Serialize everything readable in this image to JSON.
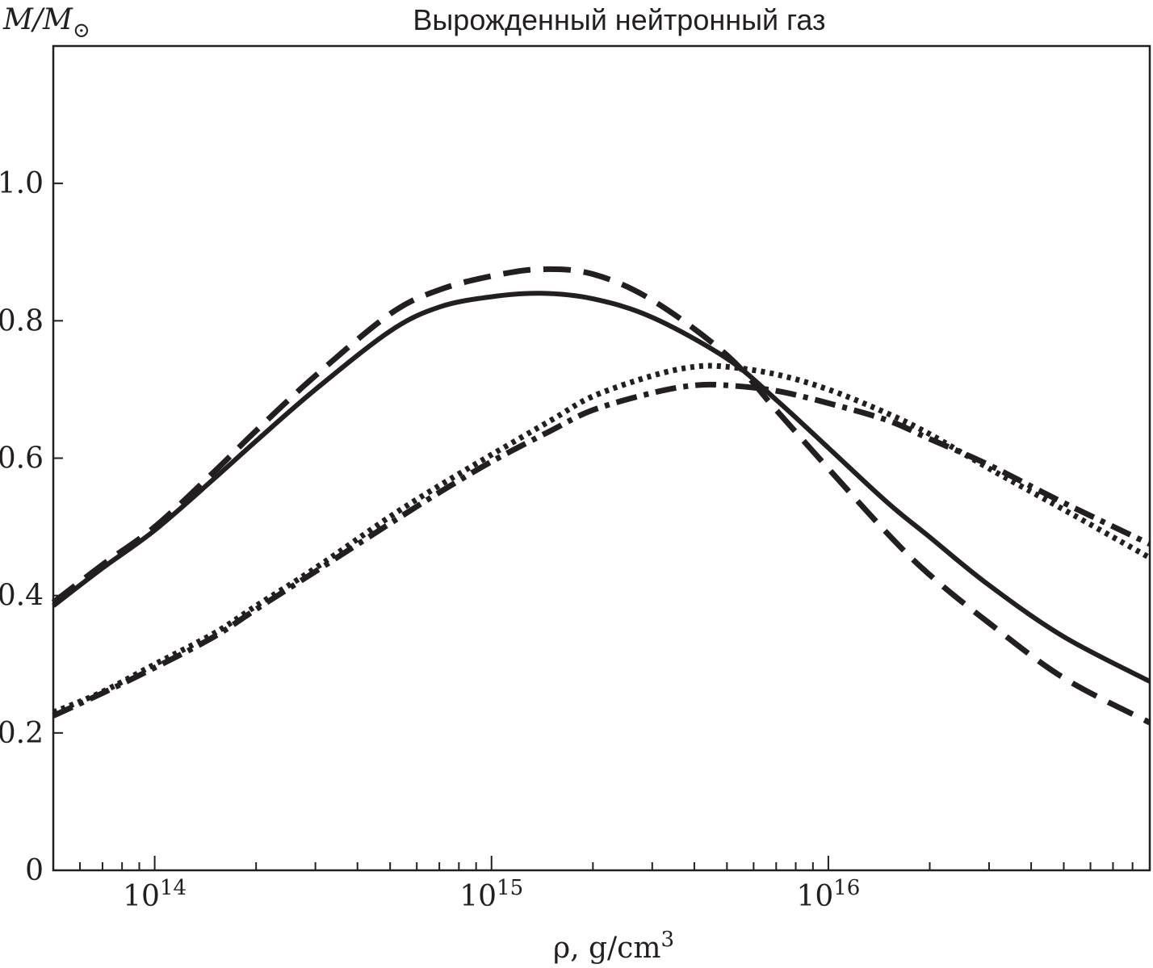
{
  "chart_data": {
    "type": "line",
    "title": "Вырожденный нейтронный газ",
    "ylabel": "M/M",
    "ylabel_sub": "⊙",
    "xlabel": "ρ, g/cm",
    "xlabel_sup": "3",
    "xscale": "log",
    "xlim": [
      50000000000000.0,
      9e+16
    ],
    "ylim": [
      0,
      1.2
    ],
    "y_ticks": [
      {
        "value": 0,
        "label": "0"
      },
      {
        "value": 0.2,
        "label": "0.2"
      },
      {
        "value": 0.4,
        "label": "0.4"
      },
      {
        "value": 0.6,
        "label": "0.6"
      },
      {
        "value": 0.8,
        "label": "0.8"
      },
      {
        "value": 1.0,
        "label": "1.0"
      }
    ],
    "x_major_ticks": [
      {
        "value": 100000000000000.0,
        "base": "10",
        "exp": "14"
      },
      {
        "value": 1000000000000000.0,
        "base": "10",
        "exp": "15"
      },
      {
        "value": 1e+16,
        "base": "10",
        "exp": "16"
      }
    ],
    "series": [
      {
        "name": "solid",
        "style": "solid",
        "points": [
          [
            50000000000000.0,
            0.385
          ],
          [
            70000000000000.0,
            0.44
          ],
          [
            100000000000000.0,
            0.495
          ],
          [
            150000000000000.0,
            0.57
          ],
          [
            200000000000000.0,
            0.625
          ],
          [
            300000000000000.0,
            0.7
          ],
          [
            500000000000000.0,
            0.785
          ],
          [
            700000000000000.0,
            0.82
          ],
          [
            1000000000000000.0,
            0.835
          ],
          [
            1400000000000000.0,
            0.84
          ],
          [
            2000000000000000.0,
            0.832
          ],
          [
            3000000000000000.0,
            0.805
          ],
          [
            5000000000000000.0,
            0.745
          ],
          [
            7000000000000000.0,
            0.685
          ],
          [
            1e+16,
            0.615
          ],
          [
            1.5e+16,
            0.535
          ],
          [
            2e+16,
            0.485
          ],
          [
            3e+16,
            0.415
          ],
          [
            5e+16,
            0.34
          ],
          [
            9e+16,
            0.275
          ]
        ]
      },
      {
        "name": "dashed",
        "style": "dashed",
        "points": [
          [
            50000000000000.0,
            0.39
          ],
          [
            70000000000000.0,
            0.445
          ],
          [
            100000000000000.0,
            0.5
          ],
          [
            150000000000000.0,
            0.58
          ],
          [
            200000000000000.0,
            0.64
          ],
          [
            300000000000000.0,
            0.72
          ],
          [
            500000000000000.0,
            0.81
          ],
          [
            700000000000000.0,
            0.845
          ],
          [
            1000000000000000.0,
            0.865
          ],
          [
            1400000000000000.0,
            0.875
          ],
          [
            2000000000000000.0,
            0.868
          ],
          [
            3000000000000000.0,
            0.83
          ],
          [
            5000000000000000.0,
            0.75
          ],
          [
            7000000000000000.0,
            0.67
          ],
          [
            1e+16,
            0.585
          ],
          [
            1.5e+16,
            0.49
          ],
          [
            2e+16,
            0.43
          ],
          [
            3e+16,
            0.36
          ],
          [
            5e+16,
            0.28
          ],
          [
            9e+16,
            0.215
          ]
        ]
      },
      {
        "name": "dotted",
        "style": "dotted",
        "points": [
          [
            50000000000000.0,
            0.23
          ],
          [
            70000000000000.0,
            0.26
          ],
          [
            100000000000000.0,
            0.3
          ],
          [
            150000000000000.0,
            0.345
          ],
          [
            200000000000000.0,
            0.385
          ],
          [
            300000000000000.0,
            0.44
          ],
          [
            500000000000000.0,
            0.515
          ],
          [
            700000000000000.0,
            0.56
          ],
          [
            1000000000000000.0,
            0.605
          ],
          [
            1500000000000000.0,
            0.655
          ],
          [
            2000000000000000.0,
            0.69
          ],
          [
            3000000000000000.0,
            0.72
          ],
          [
            4000000000000000.0,
            0.733
          ],
          [
            5000000000000000.0,
            0.733
          ],
          [
            7000000000000000.0,
            0.722
          ],
          [
            1e+16,
            0.7
          ],
          [
            1.5e+16,
            0.665
          ],
          [
            2e+16,
            0.635
          ],
          [
            3e+16,
            0.585
          ],
          [
            5e+16,
            0.525
          ],
          [
            9e+16,
            0.455
          ]
        ]
      },
      {
        "name": "dash-dot",
        "style": "dashdot",
        "points": [
          [
            50000000000000.0,
            0.225
          ],
          [
            70000000000000.0,
            0.258
          ],
          [
            100000000000000.0,
            0.295
          ],
          [
            150000000000000.0,
            0.34
          ],
          [
            200000000000000.0,
            0.38
          ],
          [
            300000000000000.0,
            0.435
          ],
          [
            500000000000000.0,
            0.505
          ],
          [
            700000000000000.0,
            0.55
          ],
          [
            1000000000000000.0,
            0.595
          ],
          [
            1500000000000000.0,
            0.64
          ],
          [
            2000000000000000.0,
            0.67
          ],
          [
            3000000000000000.0,
            0.695
          ],
          [
            4000000000000000.0,
            0.706
          ],
          [
            5000000000000000.0,
            0.706
          ],
          [
            7000000000000000.0,
            0.698
          ],
          [
            1e+16,
            0.68
          ],
          [
            1.5e+16,
            0.655
          ],
          [
            2e+16,
            0.628
          ],
          [
            3e+16,
            0.59
          ],
          [
            5e+16,
            0.535
          ],
          [
            9e+16,
            0.475
          ]
        ]
      }
    ]
  }
}
